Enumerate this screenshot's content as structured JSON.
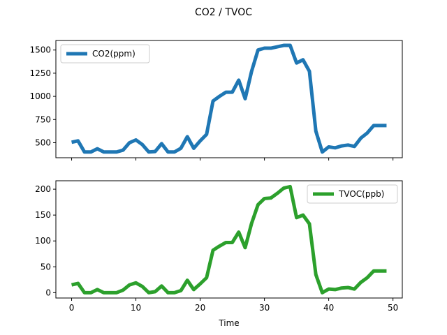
{
  "figure": {
    "title": "CO2 / TVOC"
  },
  "chart_data": [
    {
      "type": "line",
      "xlabel": "",
      "ylabel": "",
      "xlim": [
        -2.45,
        51.45
      ],
      "ylim": [
        338,
        1603
      ],
      "xticks": [
        0,
        10,
        20,
        30,
        40,
        50
      ],
      "show_xtick_labels": false,
      "yticks": [
        500,
        750,
        1000,
        1250,
        1500
      ],
      "ytick_labels": [
        "500",
        "750",
        "1000",
        "1250",
        "1500"
      ],
      "legend_position": "top-left",
      "grid": false,
      "series": [
        {
          "name": "CO2(ppm)",
          "color": "#1f77b4",
          "x": [
            0,
            1,
            2,
            3,
            4,
            5,
            6,
            7,
            8,
            9,
            10,
            11,
            12,
            13,
            14,
            15,
            16,
            17,
            18,
            19,
            20,
            21,
            22,
            23,
            24,
            25,
            26,
            27,
            28,
            29,
            30,
            31,
            32,
            33,
            34,
            35,
            36,
            37,
            38,
            39,
            40,
            41,
            42,
            43,
            44,
            45,
            46,
            47,
            48,
            49
          ],
          "y": [
            505,
            520,
            400,
            400,
            435,
            400,
            400,
            400,
            420,
            500,
            530,
            480,
            400,
            405,
            490,
            400,
            400,
            440,
            565,
            440,
            520,
            590,
            950,
            1000,
            1045,
            1045,
            1175,
            975,
            1270,
            1500,
            1520,
            1520,
            1535,
            1550,
            1550,
            1360,
            1395,
            1270,
            625,
            400,
            455,
            445,
            465,
            475,
            460,
            550,
            605,
            685,
            685,
            685
          ]
        }
      ]
    },
    {
      "type": "line",
      "xlabel": "Time",
      "ylabel": "",
      "xlim": [
        -2.45,
        51.45
      ],
      "ylim": [
        -10.3,
        216.3
      ],
      "xticks": [
        0,
        10,
        20,
        30,
        40,
        50
      ],
      "xtick_labels": [
        "0",
        "10",
        "20",
        "30",
        "40",
        "50"
      ],
      "show_xtick_labels": true,
      "yticks": [
        0,
        50,
        100,
        150,
        200
      ],
      "ytick_labels": [
        "0",
        "50",
        "100",
        "150",
        "200"
      ],
      "legend_position": "top-right",
      "grid": false,
      "series": [
        {
          "name": "TVOC(ppb)",
          "color": "#2ca02c",
          "x": [
            0,
            1,
            2,
            3,
            4,
            5,
            6,
            7,
            8,
            9,
            10,
            11,
            12,
            13,
            14,
            15,
            16,
            17,
            18,
            19,
            20,
            21,
            22,
            23,
            24,
            25,
            26,
            27,
            28,
            29,
            30,
            31,
            32,
            33,
            34,
            35,
            36,
            37,
            38,
            39,
            40,
            41,
            42,
            43,
            44,
            45,
            46,
            47,
            48,
            49
          ],
          "y": [
            15,
            18,
            0,
            0,
            6,
            0,
            0,
            0,
            5,
            15,
            19,
            12,
            0,
            2,
            13,
            0,
            0,
            4,
            24,
            6,
            17,
            29,
            82,
            90,
            97,
            97,
            117,
            87,
            134,
            170,
            182,
            183,
            192,
            202,
            205,
            145,
            150,
            133,
            35,
            0,
            7,
            6,
            9,
            10,
            7,
            20,
            29,
            42,
            42,
            42
          ]
        }
      ]
    }
  ]
}
